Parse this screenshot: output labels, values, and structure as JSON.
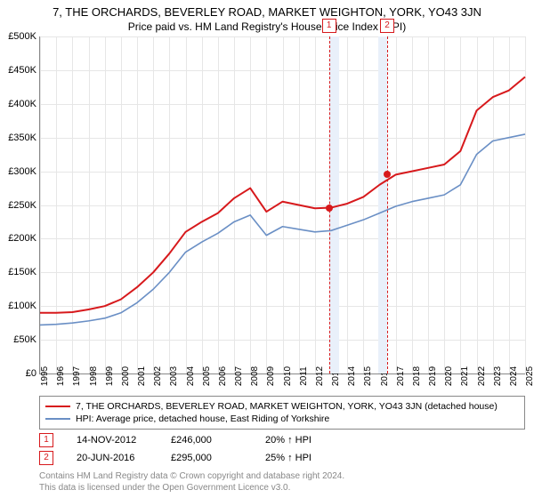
{
  "title": "7, THE ORCHARDS, BEVERLEY ROAD, MARKET WEIGHTON, YORK, YO43 3JN",
  "subtitle": "Price paid vs. HM Land Registry's House Price Index (HPI)",
  "chart": {
    "ylim": [
      0,
      500000
    ],
    "ytick_step": 50000,
    "ytick_labels": [
      "£0",
      "£50K",
      "£100K",
      "£150K",
      "£200K",
      "£250K",
      "£300K",
      "£350K",
      "£400K",
      "£450K",
      "£500K"
    ],
    "x_years": [
      1995,
      1996,
      1997,
      1998,
      1999,
      2000,
      2001,
      2002,
      2003,
      2004,
      2005,
      2006,
      2007,
      2008,
      2009,
      2010,
      2011,
      2012,
      2013,
      2014,
      2015,
      2016,
      2017,
      2018,
      2019,
      2020,
      2021,
      2022,
      2023,
      2024,
      2025
    ],
    "grid_color": "#e6e6e6",
    "axis_color": "#888888",
    "series": {
      "property": {
        "color": "#d7191c",
        "width": 2,
        "label": "7, THE ORCHARDS, BEVERLEY ROAD, MARKET WEIGHTON, YORK, YO43 3JN (detached house)",
        "values": [
          90000,
          90000,
          91000,
          95000,
          100000,
          110000,
          128000,
          150000,
          178000,
          210000,
          225000,
          238000,
          260000,
          275000,
          240000,
          255000,
          250000,
          245000,
          246000,
          252000,
          262000,
          280000,
          295000,
          300000,
          305000,
          310000,
          330000,
          390000,
          410000,
          420000,
          440000
        ]
      },
      "hpi": {
        "color": "#6a8fc5",
        "width": 1.6,
        "label": "HPI: Average price, detached house, East Riding of Yorkshire",
        "values": [
          72000,
          73000,
          75000,
          78000,
          82000,
          90000,
          105000,
          125000,
          150000,
          180000,
          195000,
          208000,
          225000,
          235000,
          205000,
          218000,
          214000,
          210000,
          212000,
          220000,
          228000,
          238000,
          248000,
          255000,
          260000,
          265000,
          280000,
          325000,
          345000,
          350000,
          355000
        ]
      }
    },
    "sales": [
      {
        "num": "1",
        "date": "14-NOV-2012",
        "price": "£246,000",
        "delta": "20% ↑ HPI",
        "year": 2012.87,
        "value": 246000,
        "color": "#d7191c"
      },
      {
        "num": "2",
        "date": "20-JUN-2016",
        "price": "£295,000",
        "delta": "25% ↑ HPI",
        "year": 2016.47,
        "value": 295000,
        "color": "#d7191c"
      }
    ],
    "bands": [
      {
        "start": 2012.87,
        "end": 2013.5,
        "color": "#e9f0fa"
      },
      {
        "start": 2015.9,
        "end": 2016.47,
        "color": "#e9f0fa"
      }
    ]
  },
  "footnote1": "Contains HM Land Registry data © Crown copyright and database right 2024.",
  "footnote2": "This data is licensed under the Open Government Licence v3.0."
}
